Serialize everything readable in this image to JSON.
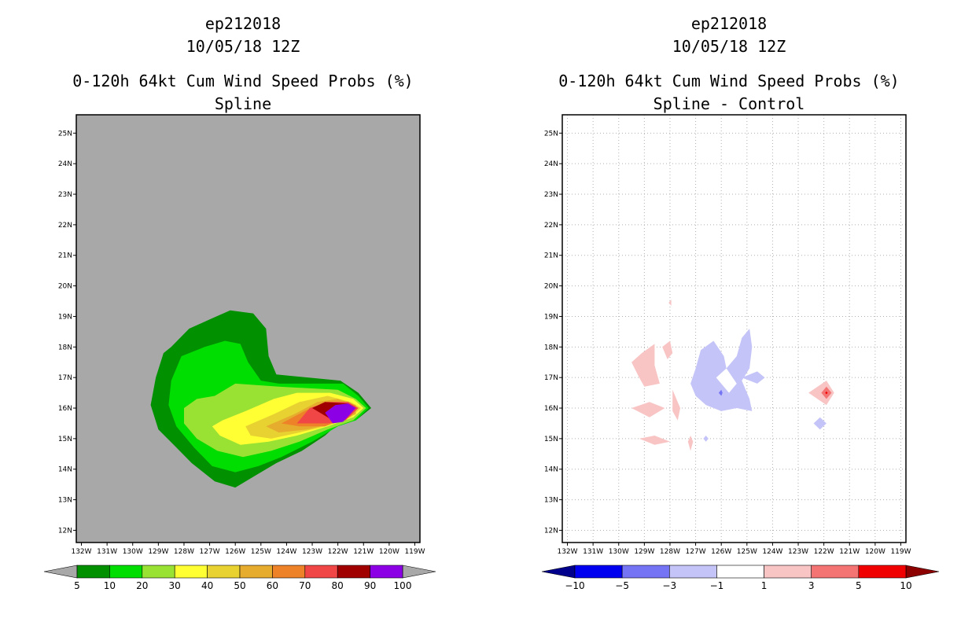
{
  "chart_data": [
    {
      "type": "heatmap",
      "title_line1": "ep212018",
      "title_line2": "10/05/18 12Z",
      "title_line3": "0-120h 64kt Cum Wind Speed Probs (%)",
      "subtitle": "Spline",
      "x_ticks": [
        "132W",
        "131W",
        "130W",
        "129W",
        "128W",
        "127W",
        "126W",
        "125W",
        "124W",
        "123W",
        "122W",
        "121W",
        "120W",
        "119W"
      ],
      "y_ticks": [
        "12N",
        "13N",
        "14N",
        "15N",
        "16N",
        "17N",
        "18N",
        "19N",
        "20N",
        "21N",
        "22N",
        "23N",
        "24N",
        "25N"
      ],
      "xlim": [
        -132.2,
        -118.8
      ],
      "ylim": [
        11.6,
        25.6
      ],
      "background_color": "#a8a8a8",
      "colorbar_labels": [
        "5",
        "10",
        "20",
        "30",
        "40",
        "50",
        "60",
        "70",
        "80",
        "90",
        "100"
      ],
      "colorbar_colors": [
        "#009000",
        "#00dd00",
        "#99e233",
        "#ffff33",
        "#e8d232",
        "#e6ac2d",
        "#ee8228",
        "#f04646",
        "#a00000",
        "#8c00e6"
      ],
      "under_color": "#a8a8a8",
      "over_color": "#a8a8a8",
      "contours": [
        {
          "level": "5",
          "color": "#009000",
          "points": [
            [
              -127.0,
              18.9
            ],
            [
              -126.2,
              19.2
            ],
            [
              -125.3,
              19.1
            ],
            [
              -124.8,
              18.6
            ],
            [
              -124.7,
              17.7
            ],
            [
              -124.4,
              17.1
            ],
            [
              -121.9,
              16.9
            ],
            [
              -121.2,
              16.5
            ],
            [
              -120.7,
              16.0
            ],
            [
              -121.3,
              15.6
            ],
            [
              -122.1,
              15.4
            ],
            [
              -122.5,
              15.1
            ],
            [
              -123.4,
              14.6
            ],
            [
              -124.4,
              14.2
            ],
            [
              -125.2,
              13.8
            ],
            [
              -126.0,
              13.4
            ],
            [
              -126.8,
              13.6
            ],
            [
              -127.7,
              14.2
            ],
            [
              -128.4,
              14.8
            ],
            [
              -129.0,
              15.3
            ],
            [
              -129.3,
              16.1
            ],
            [
              -129.1,
              17.0
            ],
            [
              -128.8,
              17.8
            ],
            [
              -128.5,
              18.0
            ],
            [
              -127.8,
              18.6
            ]
          ]
        },
        {
          "level": "10",
          "color": "#00dd00",
          "points": [
            [
              -127.2,
              18.0
            ],
            [
              -126.4,
              18.2
            ],
            [
              -125.8,
              18.1
            ],
            [
              -125.5,
              17.5
            ],
            [
              -125.0,
              16.9
            ],
            [
              -124.3,
              16.8
            ],
            [
              -121.8,
              16.8
            ],
            [
              -121.2,
              16.4
            ],
            [
              -120.8,
              16.0
            ],
            [
              -121.3,
              15.6
            ],
            [
              -122.0,
              15.4
            ],
            [
              -123.0,
              14.9
            ],
            [
              -124.2,
              14.4
            ],
            [
              -125.1,
              14.1
            ],
            [
              -126.0,
              13.9
            ],
            [
              -126.9,
              14.1
            ],
            [
              -127.6,
              14.7
            ],
            [
              -128.3,
              15.4
            ],
            [
              -128.6,
              16.1
            ],
            [
              -128.5,
              16.9
            ],
            [
              -128.1,
              17.7
            ]
          ]
        },
        {
          "level": "20",
          "color": "#99e233",
          "points": [
            [
              -126.8,
              16.4
            ],
            [
              -126.0,
              16.8
            ],
            [
              -124.3,
              16.7
            ],
            [
              -122.0,
              16.6
            ],
            [
              -121.3,
              16.3
            ],
            [
              -120.9,
              16.0
            ],
            [
              -121.4,
              15.6
            ],
            [
              -122.4,
              15.3
            ],
            [
              -123.5,
              14.9
            ],
            [
              -124.6,
              14.6
            ],
            [
              -125.7,
              14.4
            ],
            [
              -126.7,
              14.6
            ],
            [
              -127.5,
              15.0
            ],
            [
              -128.0,
              15.5
            ],
            [
              -128.0,
              16.0
            ],
            [
              -127.5,
              16.3
            ]
          ]
        },
        {
          "level": "30",
          "color": "#ffff33",
          "points": [
            [
              -126.5,
              15.6
            ],
            [
              -125.6,
              15.9
            ],
            [
              -124.5,
              16.3
            ],
            [
              -123.6,
              16.5
            ],
            [
              -122.3,
              16.5
            ],
            [
              -121.4,
              16.3
            ],
            [
              -121.0,
              16.0
            ],
            [
              -121.4,
              15.7
            ],
            [
              -122.4,
              15.4
            ],
            [
              -123.6,
              15.1
            ],
            [
              -124.7,
              14.9
            ],
            [
              -125.8,
              14.8
            ],
            [
              -126.6,
              15.1
            ],
            [
              -126.9,
              15.4
            ]
          ]
        },
        {
          "level": "40",
          "color": "#e8d232",
          "points": [
            [
              -125.6,
              15.4
            ],
            [
              -124.5,
              15.8
            ],
            [
              -123.5,
              16.2
            ],
            [
              -122.4,
              16.4
            ],
            [
              -121.5,
              16.2
            ],
            [
              -121.1,
              16.0
            ],
            [
              -121.5,
              15.7
            ],
            [
              -122.5,
              15.4
            ],
            [
              -123.5,
              15.2
            ],
            [
              -124.6,
              15.0
            ],
            [
              -125.4,
              15.1
            ]
          ]
        },
        {
          "level": "50",
          "color": "#e6ac2d",
          "points": [
            [
              -124.8,
              15.4
            ],
            [
              -123.7,
              15.8
            ],
            [
              -122.8,
              16.2
            ],
            [
              -122.0,
              16.3
            ],
            [
              -121.3,
              16.1
            ],
            [
              -121.3,
              15.8
            ],
            [
              -122.2,
              15.5
            ],
            [
              -123.2,
              15.3
            ],
            [
              -124.3,
              15.2
            ]
          ]
        },
        {
          "level": "60",
          "color": "#ee8228",
          "points": [
            [
              -124.2,
              15.5
            ],
            [
              -123.3,
              15.9
            ],
            [
              -122.5,
              16.2
            ],
            [
              -121.6,
              16.2
            ],
            [
              -121.2,
              16.0
            ],
            [
              -121.6,
              15.7
            ],
            [
              -122.5,
              15.4
            ],
            [
              -123.5,
              15.4
            ]
          ]
        },
        {
          "level": "70",
          "color": "#f04646",
          "points": [
            [
              -123.6,
              15.5
            ],
            [
              -123.1,
              16.0
            ],
            [
              -122.4,
              16.2
            ],
            [
              -121.6,
              16.2
            ],
            [
              -121.2,
              16.0
            ],
            [
              -121.7,
              15.6
            ],
            [
              -122.4,
              15.5
            ]
          ]
        },
        {
          "level": "80",
          "color": "#a00000",
          "points": [
            [
              -123.0,
              16.0
            ],
            [
              -122.5,
              16.2
            ],
            [
              -121.6,
              16.15
            ],
            [
              -121.3,
              16.0
            ],
            [
              -121.8,
              15.65
            ],
            [
              -122.2,
              15.6
            ]
          ]
        },
        {
          "level": "90",
          "color": "#8c00e6",
          "points": [
            [
              -122.5,
              15.85
            ],
            [
              -122.1,
              16.1
            ],
            [
              -121.6,
              16.15
            ],
            [
              -121.3,
              16.0
            ],
            [
              -121.8,
              15.55
            ],
            [
              -122.2,
              15.5
            ]
          ]
        }
      ]
    },
    {
      "type": "heatmap",
      "title_line1": "ep212018",
      "title_line2": "10/05/18 12Z",
      "title_line3": "0-120h 64kt Cum Wind Speed Probs (%)",
      "subtitle": "Spline - Control",
      "x_ticks": [
        "132W",
        "131W",
        "130W",
        "129W",
        "128W",
        "127W",
        "126W",
        "125W",
        "124W",
        "123W",
        "122W",
        "121W",
        "120W",
        "119W"
      ],
      "y_ticks": [
        "12N",
        "13N",
        "14N",
        "15N",
        "16N",
        "17N",
        "18N",
        "19N",
        "20N",
        "21N",
        "22N",
        "23N",
        "24N",
        "25N"
      ],
      "xlim": [
        -132.2,
        -118.8
      ],
      "ylim": [
        11.6,
        25.6
      ],
      "background_color": "#ffffff",
      "grid": true,
      "colorbar_labels": [
        "-10",
        "-5",
        "-3",
        "-1",
        "1",
        "3",
        "5",
        "10"
      ],
      "colorbar_colors": [
        "#0000f0",
        "#7474f4",
        "#c4c4f8",
        "#ffffff",
        "#f8c4c4",
        "#f47474",
        "#f00000"
      ],
      "under_color": "#00008c",
      "over_color": "#8c0000",
      "contours": [
        {
          "level": "1",
          "color": "#f8c4c4",
          "points": [
            [
              -129.5,
              17.5
            ],
            [
              -129.1,
              17.8
            ],
            [
              -128.6,
              18.1
            ],
            [
              -128.6,
              17.4
            ],
            [
              -128.4,
              16.8
            ],
            [
              -129.0,
              16.7
            ],
            [
              -129.2,
              17.0
            ]
          ]
        },
        {
          "level": "1",
          "color": "#f8c4c4",
          "points": [
            [
              -128.3,
              18.0
            ],
            [
              -128.0,
              18.2
            ],
            [
              -127.9,
              17.8
            ],
            [
              -128.1,
              17.6
            ]
          ]
        },
        {
          "level": "1",
          "color": "#f8c4c4",
          "points": [
            [
              -128.05,
              19.45
            ],
            [
              -127.95,
              19.55
            ],
            [
              -127.95,
              19.35
            ]
          ]
        },
        {
          "level": "1",
          "color": "#f8c4c4",
          "points": [
            [
              -129.5,
              16.0
            ],
            [
              -128.8,
              16.2
            ],
            [
              -128.2,
              16.0
            ],
            [
              -128.8,
              15.7
            ]
          ]
        },
        {
          "level": "1",
          "color": "#f8c4c4",
          "points": [
            [
              -127.9,
              16.6
            ],
            [
              -127.6,
              16.0
            ],
            [
              -127.7,
              15.6
            ],
            [
              -127.9,
              15.9
            ]
          ]
        },
        {
          "level": "1",
          "color": "#f8c4c4",
          "points": [
            [
              -129.2,
              15.0
            ],
            [
              -128.6,
              15.1
            ],
            [
              -128.0,
              14.9
            ],
            [
              -128.6,
              14.8
            ]
          ]
        },
        {
          "level": "1",
          "color": "#f8c4c4",
          "points": [
            [
              -127.3,
              14.9
            ],
            [
              -127.2,
              15.1
            ],
            [
              -127.1,
              14.9
            ],
            [
              -127.2,
              14.6
            ]
          ]
        },
        {
          "level": "1",
          "color": "#f8c4c4",
          "points": [
            [
              -122.6,
              16.5
            ],
            [
              -121.9,
              16.9
            ],
            [
              -121.6,
              16.5
            ],
            [
              -121.9,
              16.1
            ]
          ]
        },
        {
          "level": "3",
          "color": "#f47474",
          "points": [
            [
              -122.1,
              16.5
            ],
            [
              -121.9,
              16.7
            ],
            [
              -121.7,
              16.5
            ],
            [
              -121.9,
              16.3
            ]
          ]
        },
        {
          "level": "5",
          "color": "#f00000",
          "points": [
            [
              -121.95,
              16.5
            ],
            [
              -121.9,
              16.55
            ],
            [
              -121.85,
              16.5
            ],
            [
              -121.9,
              16.45
            ]
          ]
        },
        {
          "level": "-1",
          "color": "#c4c4f8",
          "points": [
            [
              -127.0,
              17.3
            ],
            [
              -126.8,
              17.9
            ],
            [
              -126.3,
              18.2
            ],
            [
              -125.9,
              17.7
            ],
            [
              -125.8,
              17.3
            ],
            [
              -125.4,
              17.7
            ],
            [
              -125.2,
              18.3
            ],
            [
              -124.9,
              18.6
            ],
            [
              -124.8,
              18.0
            ],
            [
              -124.9,
              17.3
            ],
            [
              -125.2,
              16.9
            ],
            [
              -124.9,
              16.3
            ],
            [
              -124.8,
              15.9
            ],
            [
              -125.4,
              16.0
            ],
            [
              -126.0,
              15.9
            ],
            [
              -126.6,
              16.1
            ],
            [
              -127.0,
              16.4
            ],
            [
              -127.2,
              16.8
            ]
          ]
        },
        {
          "level": "-1",
          "color": "#c4c4f8",
          "points": [
            [
              -125.2,
              17.0
            ],
            [
              -124.6,
              16.8
            ],
            [
              -124.3,
              17.0
            ],
            [
              -124.6,
              17.2
            ]
          ]
        },
        {
          "level": "-1",
          "color": "#c4c4f8",
          "points": [
            [
              -122.4,
              15.5
            ],
            [
              -122.15,
              15.7
            ],
            [
              -121.9,
              15.5
            ],
            [
              -122.15,
              15.3
            ]
          ]
        },
        {
          "level": "-1",
          "color": "#c4c4f8",
          "points": [
            [
              -126.7,
              15.0
            ],
            [
              -126.6,
              15.1
            ],
            [
              -126.5,
              15.0
            ],
            [
              -126.6,
              14.9
            ]
          ]
        },
        {
          "level": "-3",
          "color": "#7474f4",
          "points": [
            [
              -126.1,
              16.5
            ],
            [
              -126.0,
              16.6
            ],
            [
              -125.95,
              16.5
            ],
            [
              -126.0,
              16.4
            ]
          ]
        }
      ],
      "white_holes": [
        [
          [
            -126.2,
            17.0
          ],
          [
            -125.8,
            17.3
          ],
          [
            -125.4,
            16.8
          ],
          [
            -125.7,
            16.5
          ]
        ]
      ]
    }
  ]
}
